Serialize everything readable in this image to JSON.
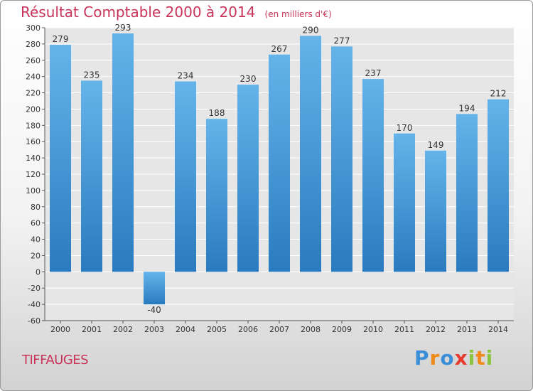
{
  "header": {
    "title": "Résultat Comptable 2000 à 2014",
    "unit": "(en milliers d'€)"
  },
  "footer": {
    "commune": "TIFFAUGES",
    "logo": {
      "p": "P",
      "r": "r",
      "o": "o",
      "x": "x",
      "i1": "i",
      "t": "t",
      "i2": "i"
    }
  },
  "colors": {
    "title": "#c9345a",
    "bar_light": "#64b4ea",
    "bar_dark": "#2a7bbf",
    "grid": "#ffffff"
  },
  "chart_data": {
    "type": "bar",
    "categories": [
      "2000",
      "2001",
      "2002",
      "2003",
      "2004",
      "2005",
      "2006",
      "2007",
      "2008",
      "2009",
      "2010",
      "2011",
      "2012",
      "2013",
      "2014"
    ],
    "values": [
      279,
      235,
      293,
      -40,
      234,
      188,
      230,
      267,
      290,
      277,
      237,
      170,
      149,
      194,
      212
    ],
    "title": "Résultat Comptable 2000 à 2014",
    "subtitle": "(en milliers d'€)",
    "ylim": [
      -60,
      300
    ],
    "yticks": [
      -60,
      -40,
      -20,
      0,
      20,
      40,
      60,
      80,
      100,
      120,
      140,
      160,
      180,
      200,
      220,
      240,
      260,
      280,
      300
    ],
    "grid": true,
    "data_labels": true
  }
}
